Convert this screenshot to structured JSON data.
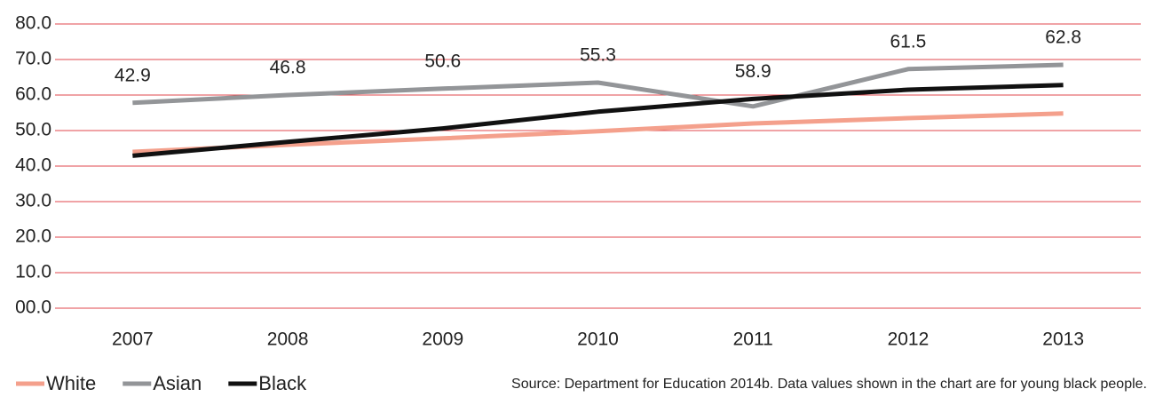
{
  "chart_data": {
    "type": "line",
    "categories": [
      "2007",
      "2008",
      "2009",
      "2010",
      "2011",
      "2012",
      "2013"
    ],
    "series": [
      {
        "name": "White",
        "color": "#f4a08c",
        "values": [
          44.0,
          46.0,
          47.8,
          49.8,
          52.0,
          53.5,
          54.8
        ]
      },
      {
        "name": "Asian",
        "color": "#939598",
        "values": [
          57.8,
          60.0,
          61.8,
          63.5,
          56.8,
          67.3,
          68.5
        ]
      },
      {
        "name": "Black",
        "color": "#111111",
        "values": [
          42.9,
          46.8,
          50.6,
          55.3,
          58.9,
          61.5,
          62.8
        ]
      }
    ],
    "labeled_series": "Black",
    "ylim": [
      0,
      80
    ],
    "yticks": [
      {
        "value": 0,
        "label": "00.0"
      },
      {
        "value": 10,
        "label": "10.0"
      },
      {
        "value": 20,
        "label": "20.0"
      },
      {
        "value": 30,
        "label": "30.0"
      },
      {
        "value": 40,
        "label": "40.0"
      },
      {
        "value": 50,
        "label": "50.0"
      },
      {
        "value": 60,
        "label": "60.0"
      },
      {
        "value": 70,
        "label": "70.0"
      },
      {
        "value": 80,
        "label": "80.0"
      }
    ],
    "grid": true,
    "grid_color": "#e0474c",
    "legend": "bottom-left",
    "source": "Source: Department for Education 2014b. Data values shown in the chart are for young black people."
  }
}
